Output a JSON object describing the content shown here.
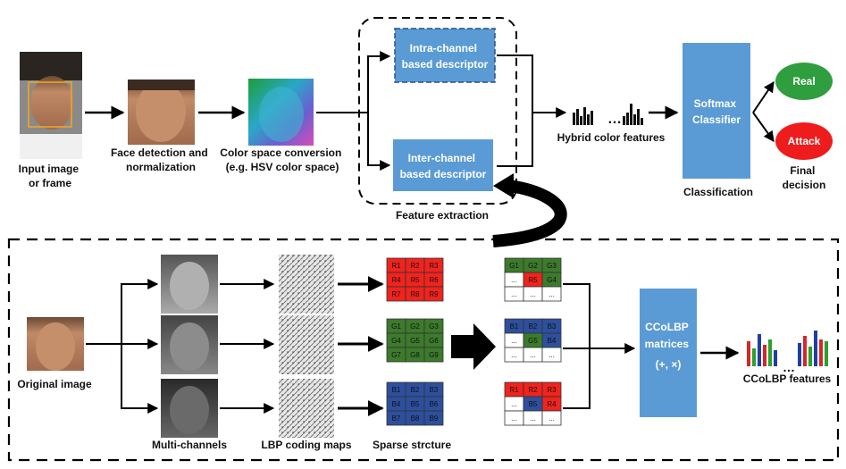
{
  "colors": {
    "blue_box": "#5b9bd5",
    "real": "#2e9e3f",
    "attack": "#ee1c1c",
    "grid_red": "#f0231d",
    "grid_green": "#3c7a2c",
    "grid_blue": "#2d4f9e"
  },
  "top": {
    "input_label": [
      "Input image",
      "or frame"
    ],
    "face_detect_label": [
      "Face detection and",
      "normalization"
    ],
    "color_conv_label": [
      "Color space conversion",
      "(e.g. HSV color space)"
    ],
    "intra_desc": [
      "Intra-channel",
      "based descriptor"
    ],
    "inter_desc": [
      "Inter-channel",
      "based descriptor"
    ],
    "feature_extraction": "Feature extraction",
    "hybrid_features": "Hybrid color features",
    "dots": "…",
    "softmax": [
      "Softmax",
      "Classifier"
    ],
    "classification": "Classification",
    "real": "Real",
    "attack": "Attack",
    "final_decision": [
      "Final",
      "decision"
    ]
  },
  "bottom": {
    "original_image": "Original image",
    "multi_channels": "Multi-channels",
    "lbp_maps": "LBP coding maps",
    "sparse": "Sparse strcture",
    "ccolbp_box": [
      "CCoLBP",
      "matrices",
      "(+, ×)"
    ],
    "ccolbp_features": "CCoLBP features",
    "dots": "…",
    "grid_red": [
      "R1",
      "R2",
      "R3",
      "R4",
      "R5",
      "R6",
      "R7",
      "R8",
      "R9"
    ],
    "grid_green": [
      "G1",
      "G2",
      "G3",
      "G4",
      "G5",
      "G6",
      "G7",
      "G8",
      "G9"
    ],
    "grid_blue": [
      "B1",
      "B2",
      "B3",
      "B4",
      "B5",
      "B6",
      "B7",
      "B8",
      "B9"
    ],
    "cooc_green": [
      "G1",
      "G2",
      "G3",
      "...",
      "R5",
      "G4",
      "...",
      "...",
      "..."
    ],
    "cooc_blue": [
      "B1",
      "B2",
      "B3",
      "...",
      "G5",
      "B4",
      "...",
      "...",
      "..."
    ],
    "cooc_red": [
      "R1",
      "R2",
      "R3",
      "...",
      "B5",
      "R4",
      "...",
      "...",
      "..."
    ]
  }
}
